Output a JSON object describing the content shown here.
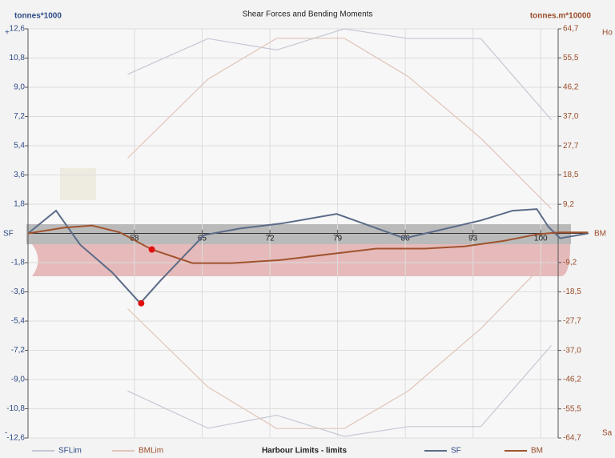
{
  "chart_data": {
    "type": "line",
    "title": "Shear Forces and Bending Moments",
    "y_label": "tonnes*1000",
    "y2_label": "tonnes.m*10000",
    "y_top_sign": "+",
    "y_bottom_sign": "-",
    "y2_top_label": "Ho",
    "y2_bottom_label": "Sa",
    "zero_left_label": "SF",
    "zero_right_label": "BM",
    "legend_title": "Harbour Limits - limits",
    "xlim": [
      47,
      101.8
    ],
    "xticks": [
      58,
      65,
      72,
      79,
      86,
      93,
      100
    ],
    "ylim": [
      -12.6,
      12.6
    ],
    "yticks": [
      {
        "value": 12.6,
        "label": "12,6"
      },
      {
        "value": 10.8,
        "label": "10,8"
      },
      {
        "value": 9,
        "label": "9,0"
      },
      {
        "value": 7.2,
        "label": "7,2"
      },
      {
        "value": 5.4,
        "label": "5,4"
      },
      {
        "value": 3.6,
        "label": "3,6"
      },
      {
        "value": 1.8,
        "label": "1,8"
      },
      {
        "value": -1.8,
        "label": "-1,8"
      },
      {
        "value": -3.6,
        "label": "-3,6"
      },
      {
        "value": -5.4,
        "label": "-5,4"
      },
      {
        "value": -7.2,
        "label": "-7,2"
      },
      {
        "value": -9,
        "label": "-9,0"
      },
      {
        "value": -10.8,
        "label": "-10,8"
      },
      {
        "value": -12.6,
        "label": "-12,6"
      }
    ],
    "y2lim": [
      -64.7,
      64.7
    ],
    "y2ticks": [
      {
        "value": 64.7,
        "label": "64,7"
      },
      {
        "value": 55.5,
        "label": "55,5"
      },
      {
        "value": 46.2,
        "label": "46,2"
      },
      {
        "value": 37,
        "label": "37,0"
      },
      {
        "value": 27.7,
        "label": "27,7"
      },
      {
        "value": 18.5,
        "label": "18,5"
      },
      {
        "value": 9.2,
        "label": "9,2"
      },
      {
        "value": -9.2,
        "label": "-9,2"
      },
      {
        "value": -18.5,
        "label": "-18,5"
      },
      {
        "value": -27.7,
        "label": "-27,7"
      },
      {
        "value": -37,
        "label": "-37,0"
      },
      {
        "value": -46.2,
        "label": "-46,2"
      },
      {
        "value": -55.5,
        "label": "-55,5"
      },
      {
        "value": -64.7,
        "label": "-64,7"
      }
    ],
    "grid": true,
    "limits": [
      {
        "name": "SFLim",
        "color": "#c4c8d4",
        "x": [
          57.3,
          65.6,
          72.7,
          79.7,
          86.3,
          93.8,
          101.1
        ],
        "upper": [
          9.8,
          12,
          11.3,
          12.6,
          12,
          12,
          7
        ],
        "lower": [
          -9.7,
          -12,
          -11.2,
          -12.5,
          -11.9,
          -11.9,
          -6.9
        ]
      },
      {
        "name": "BMLim",
        "color": "#e0c4b8",
        "axis": "y2",
        "x": [
          57.3,
          65.6,
          72.7,
          79.7,
          86.3,
          93.8,
          101.1
        ],
        "upper": [
          23.8,
          48.8,
          61.7,
          61.7,
          49.6,
          30.1,
          7.8
        ],
        "lower": [
          -23.8,
          -48.6,
          -61.7,
          -61.7,
          -49.8,
          -30.1,
          -7.3
        ]
      }
    ],
    "series": [
      {
        "name": "SF",
        "color": "#5b6b88",
        "x": [
          47,
          49.9,
          52.4,
          55.7,
          58.6,
          60.7,
          63.1,
          65.2,
          68.9,
          73.1,
          78.9,
          82.2,
          85.9,
          88.8,
          93.8,
          97.1,
          99.6,
          100.8,
          102,
          104.9
        ],
        "values": [
          0,
          1.4,
          -0.7,
          -2.4,
          -4.3,
          -2.9,
          -1.4,
          -0.1,
          0.3,
          0.6,
          1.2,
          0.5,
          -0.3,
          0.1,
          0.8,
          1.4,
          1.5,
          0.4,
          -0.3,
          0
        ]
      },
      {
        "name": "BM",
        "color": "#a0532e",
        "axis": "y2",
        "x": [
          47,
          50.7,
          53.6,
          56.5,
          59.8,
          64,
          68.1,
          73.1,
          78.9,
          83,
          88,
          92.1,
          96.3,
          99.6,
          101.8,
          104.9
        ],
        "values": [
          0,
          1.8,
          2.5,
          0.3,
          -5.1,
          -9.4,
          -9.4,
          -8.4,
          -6.3,
          -4.8,
          -4.8,
          -4.1,
          -2.3,
          -0.3,
          0.3,
          0.3
        ]
      }
    ],
    "highlight_points": [
      {
        "x": 58.7,
        "y": -4.3,
        "color": "#e01010"
      },
      {
        "x": 59.8,
        "y": -5.1,
        "axis": "y2",
        "color": "#e01010"
      }
    ]
  }
}
